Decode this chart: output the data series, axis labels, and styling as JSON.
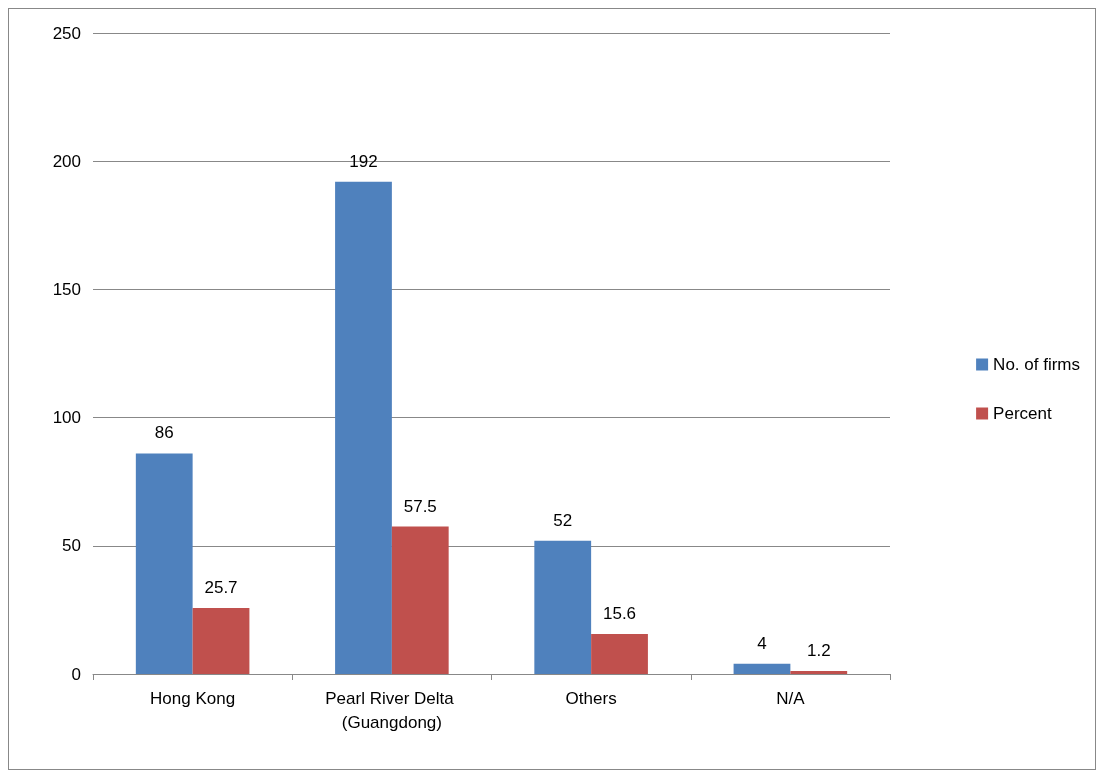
{
  "chart_data": {
    "type": "bar",
    "categories": [
      "Hong Kong",
      "Pearl River Delta (Guangdong)",
      "Others",
      "N/A"
    ],
    "series": [
      {
        "name": "No. of firms",
        "color": "#4f81bd",
        "values": [
          86,
          192,
          52,
          4
        ]
      },
      {
        "name": "Percent",
        "color": "#c0504d",
        "values": [
          25.7,
          57.5,
          15.6,
          1.2
        ]
      }
    ],
    "ylim": [
      0,
      250
    ],
    "yticks": [
      0,
      50,
      100,
      150,
      200,
      250
    ],
    "grid": "y",
    "legend": "right",
    "data_labels": true
  }
}
